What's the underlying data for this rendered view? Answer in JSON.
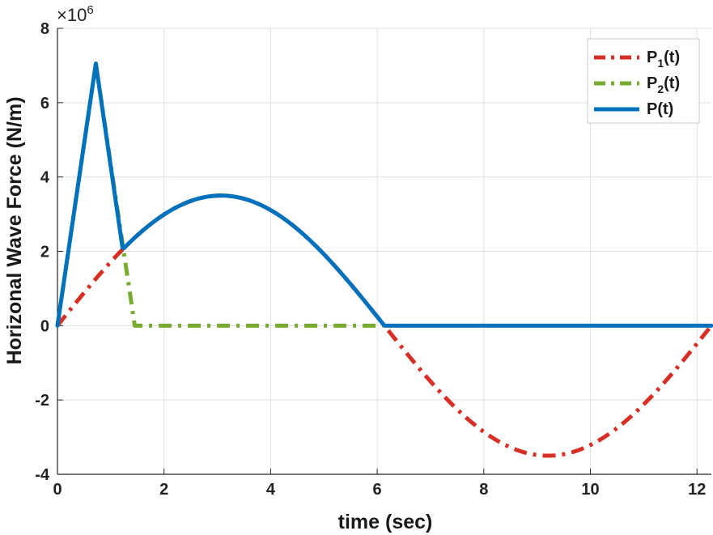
{
  "chart_data": {
    "type": "line",
    "xlabel": "time (sec)",
    "ylabel": "Horizonal Wave Force (N/m)",
    "y_multiplier": {
      "base": "×10",
      "exponent": "6"
    },
    "xlim": [
      0,
      12.27
    ],
    "ylim": [
      -4,
      8
    ],
    "x_ticks": [
      0,
      2,
      4,
      6,
      8,
      10,
      12
    ],
    "y_ticks": [
      -4,
      -2,
      0,
      2,
      4,
      6,
      8
    ],
    "x_tick_labels": [
      "0",
      "2",
      "4",
      "6",
      "8",
      "10",
      "12"
    ],
    "y_tick_labels": [
      "-4",
      "-2",
      "0",
      "2",
      "4",
      "6",
      "8"
    ],
    "grid": true,
    "legend_position": "top-right",
    "series": [
      {
        "name_main": "P",
        "name_sub": "1",
        "name_tail": "(t)",
        "color": "#d62f25",
        "style": "dash-dot",
        "description_function": "3.5*sin(2*pi*t/12.27)",
        "amplitude": 3.5,
        "period": 12.27,
        "x_range": [
          0,
          12.27
        ]
      },
      {
        "name_main": "P",
        "name_sub": "2",
        "name_tail": "(t)",
        "color": "#77ac30",
        "style": "dash-dot",
        "points": [
          [
            0,
            0
          ],
          [
            0.72,
            7.05
          ],
          [
            1.45,
            0
          ],
          [
            6.1,
            0
          ]
        ]
      },
      {
        "name_main": "P(t)",
        "name_sub": "",
        "name_tail": "",
        "color": "#0072bd",
        "style": "solid",
        "points_part1": [
          [
            0,
            0
          ],
          [
            0.72,
            7.05
          ],
          [
            1.22,
            2.1
          ]
        ],
        "sine_range": [
          1.22,
          6.135
        ],
        "zero_range": [
          6.135,
          12.27
        ]
      }
    ]
  }
}
